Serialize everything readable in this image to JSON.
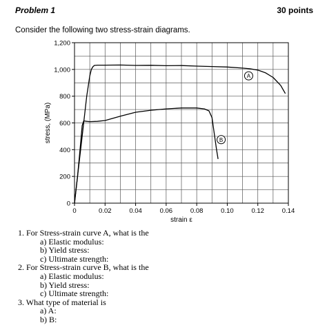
{
  "header": {
    "problem": "Problem 1",
    "points": "30 points"
  },
  "intro": "Consider the following two stress-strain diagrams.",
  "chart_data": {
    "type": "line",
    "xlabel": "strain ε",
    "ylabel": "stress, (MPa)",
    "xlim": [
      0,
      0.14
    ],
    "ylim": [
      0,
      1200
    ],
    "xticks": [
      "0",
      "0.02",
      "0.04",
      "0.06",
      "0.08",
      "0.10",
      "0.12",
      "0.14"
    ],
    "yticks": [
      "0",
      "200",
      "400",
      "600",
      "800",
      "1,000",
      "1,200"
    ],
    "grid": true,
    "series": [
      {
        "name": "A",
        "color": "#000000",
        "x": [
          0,
          0.002,
          0.005,
          0.008,
          0.01,
          0.011,
          0.012,
          0.013,
          0.015,
          0.02,
          0.03,
          0.04,
          0.05,
          0.06,
          0.07,
          0.08,
          0.09,
          0.1,
          0.11,
          0.115,
          0.12,
          0.125,
          0.13,
          0.135,
          0.138
        ],
        "y": [
          0,
          200,
          500,
          800,
          950,
          1000,
          1020,
          1030,
          1032,
          1032,
          1033,
          1030,
          1031,
          1028,
          1029,
          1025,
          1022,
          1018,
          1010,
          1005,
          995,
          975,
          940,
          880,
          820
        ]
      },
      {
        "name": "B",
        "color": "#000000",
        "x": [
          0,
          0.002,
          0.004,
          0.005,
          0.006,
          0.008,
          0.01,
          0.015,
          0.02,
          0.03,
          0.04,
          0.05,
          0.06,
          0.07,
          0.08,
          0.085,
          0.088,
          0.09,
          0.091,
          0.092,
          0.093,
          0.094
        ],
        "y": [
          0,
          200,
          450,
          580,
          615,
          612,
          610,
          612,
          618,
          650,
          680,
          695,
          705,
          712,
          712,
          705,
          690,
          640,
          560,
          480,
          400,
          330
        ]
      }
    ],
    "annotations": [
      {
        "text": "A",
        "x": 0.114,
        "y": 952
      },
      {
        "text": "B",
        "x": 0.096,
        "y": 475
      }
    ]
  },
  "questions": {
    "q1": "1. For Stress-strain curve A, what is the",
    "q1a": "a) Elastic modulus:",
    "q1b": "b) Yield stress:",
    "q1c": "c) Ultimate strength:",
    "q2": "2. For Stress-strain curve B, what is the",
    "q2a": "a) Elastic modulus:",
    "q2b": "b) Yield stress:",
    "q2c": "c) Ultimate strength:",
    "q3": "3. What type of material is",
    "q3a": "a) A:",
    "q3b": "b) B:"
  }
}
